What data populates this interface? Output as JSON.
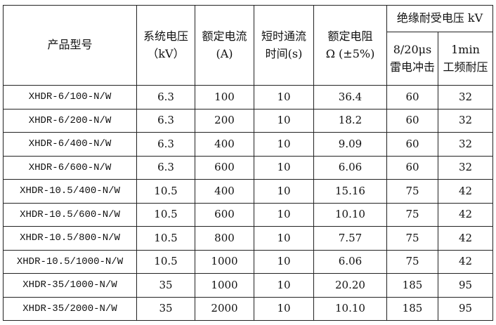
{
  "headers": {
    "model": "产品型号",
    "voltage": [
      "系统电压",
      "（kV）"
    ],
    "current": [
      "额定电流",
      "(A)"
    ],
    "time": [
      "短时通流",
      "时间(s)"
    ],
    "resistance": [
      "额定电阻",
      "Ω (±5%)"
    ],
    "insulation": "绝缘耐受电压 kV",
    "lightning": [
      "8/20μs",
      "雷电冲击"
    ],
    "powerfreq": [
      "1min",
      "工频耐压"
    ]
  },
  "rows": [
    [
      "XHDR-6/100-N/W",
      "6.3",
      "100",
      "10",
      "36.4",
      "60",
      "32"
    ],
    [
      "XHDR-6/200-N/W",
      "6.3",
      "200",
      "10",
      "18.2",
      "60",
      "32"
    ],
    [
      "XHDR-6/400-N/W",
      "6.3",
      "400",
      "10",
      "9.09",
      "60",
      "32"
    ],
    [
      "XHDR-6/600-N/W",
      "6.3",
      "600",
      "10",
      "6.06",
      "60",
      "32"
    ],
    [
      "XHDR-10.5/400-N/W",
      "10.5",
      "400",
      "10",
      "15.16",
      "75",
      "42"
    ],
    [
      "XHDR-10.5/600-N/W",
      "10.5",
      "600",
      "10",
      "10.10",
      "75",
      "42"
    ],
    [
      "XHDR-10.5/800-N/W",
      "10.5",
      "800",
      "10",
      "7.57",
      "75",
      "42"
    ],
    [
      "XHDR-10.5/1000-N/W",
      "10.5",
      "1000",
      "10",
      "6.06",
      "75",
      "42"
    ],
    [
      "XHDR-35/1000-N/W",
      "35",
      "1000",
      "10",
      "20.20",
      "185",
      "95"
    ],
    [
      "XHDR-35/2000-N/W",
      "35",
      "2000",
      "10",
      "10.10",
      "185",
      "95"
    ]
  ]
}
